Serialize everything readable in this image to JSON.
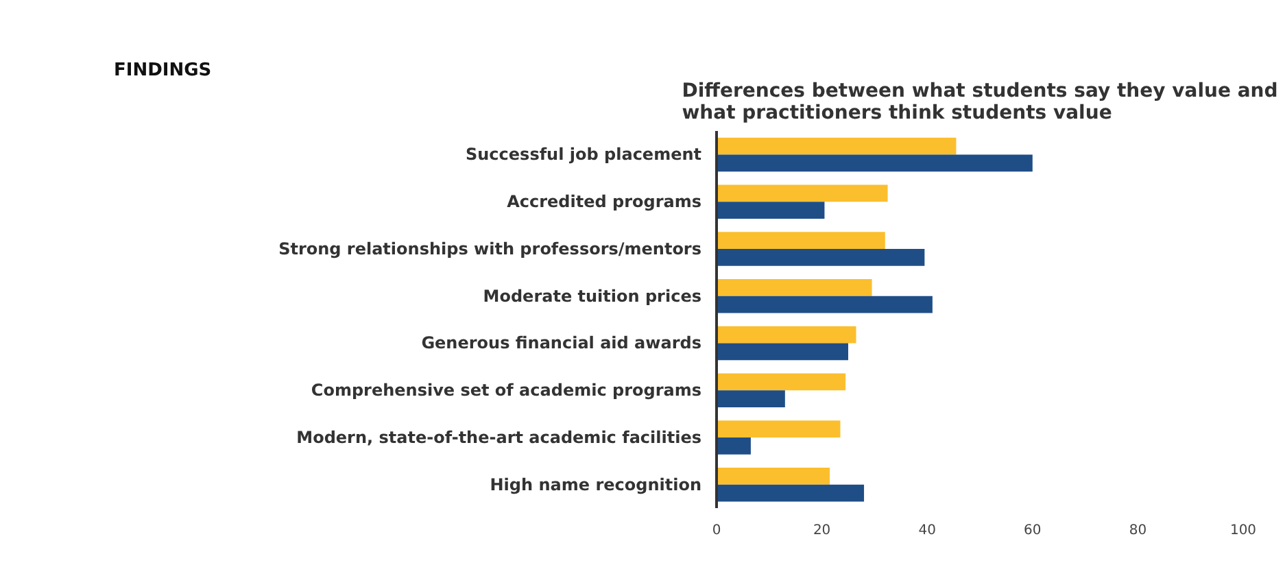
{
  "chart_data": {
    "type": "bar",
    "orientation": "horizontal",
    "title": "Differences between what students say they value and\nwhat practitioners think students value",
    "annotations": [
      "FINDINGS"
    ],
    "categories": [
      "Successful job placement",
      "Accredited programs",
      "Strong relationships with professors/mentors",
      "Moderate tuition prices",
      "Generous financial aid awards",
      "Comprehensive set of academic programs",
      "Modern, state-of-the-art academic facilities",
      "High name recognition"
    ],
    "series": [
      {
        "color": "#fbbf2d",
        "values": [
          45.5,
          32.5,
          32,
          29.5,
          26.5,
          24.5,
          23.5,
          21.5
        ]
      },
      {
        "color": "#1f4e87",
        "values": [
          60,
          20.5,
          39.5,
          41,
          25,
          13,
          6.5,
          28
        ]
      }
    ],
    "xlim": [
      0,
      100
    ],
    "xticks": [
      0,
      20,
      40,
      60,
      80,
      100
    ],
    "grid": false
  }
}
